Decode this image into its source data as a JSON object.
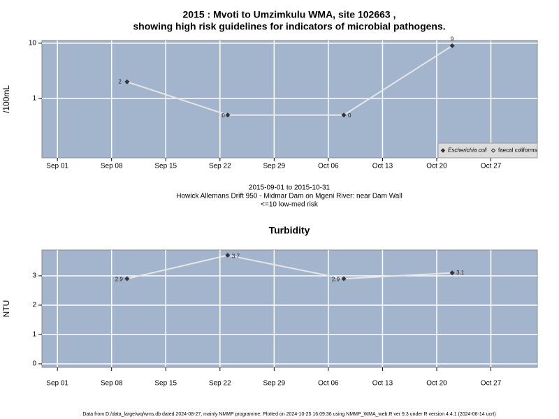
{
  "chart_data": [
    {
      "type": "line",
      "title": "2015 : Mvoti to Umzimkulu WMA, site 102663 ,",
      "subtitle": "showing high risk guidelines for indicators of microbial pathogens.",
      "ylabel": "/100mL",
      "log_y": true,
      "grid": true,
      "legend": "bottom-right",
      "x": [
        "Sep 10",
        "Sep 23",
        "Oct 08",
        "Oct 22"
      ],
      "xlim": [
        "Aug 30",
        "Nov 02"
      ],
      "xticks": [
        "Sep 01",
        "Sep 08",
        "Sep 15",
        "Sep 22",
        "Sep 29",
        "Oct 06",
        "Oct 13",
        "Oct 20",
        "Oct 27"
      ],
      "ylim": [
        0.084,
        11.2
      ],
      "yticks": [
        1,
        10
      ],
      "series": [
        {
          "name": "Escherichia coli",
          "color": "#333333",
          "values": [
            2,
            0.5,
            0.5,
            9
          ],
          "value_labels": [
            "2",
            "0",
            "0",
            "9"
          ],
          "marker": "filled"
        },
        {
          "name": "faecal coliforms",
          "color": "#333333",
          "values": [
            null,
            null,
            null,
            null
          ],
          "marker": "open"
        }
      ],
      "caption_lines": [
        "2015-09-01 to 2015-10-31",
        "Howick Allemans Drift 950 - Midmar Dam on Mgeni River: near Dam Wall",
        "<=10 low-med risk"
      ]
    },
    {
      "type": "line",
      "title": "Turbidity",
      "ylabel": "NTU",
      "grid": true,
      "x": [
        "Sep 10",
        "Sep 23",
        "Oct 08",
        "Oct 22"
      ],
      "xlim": [
        "Aug 30",
        "Nov 02"
      ],
      "xticks": [
        "Sep 01",
        "Sep 08",
        "Sep 15",
        "Sep 22",
        "Sep 29",
        "Oct 06",
        "Oct 13",
        "Oct 20",
        "Oct 27"
      ],
      "ylim": [
        -0.12,
        3.88
      ],
      "yticks": [
        0,
        1,
        2,
        3
      ],
      "series": [
        {
          "name": "Turbidity",
          "color": "#333333",
          "values": [
            2.9,
            3.7,
            2.9,
            3.1
          ]
        }
      ]
    }
  ],
  "footer": "Data from D:/data_large/wq/wms.db dated 2024-08-27, mainly NMMP programme. Plotted on 2024-10-25 16:09:36 using NMMP_WMA_web.R ver 9.3 under R version 4.4.1 (2024-06-14 ucrt)"
}
